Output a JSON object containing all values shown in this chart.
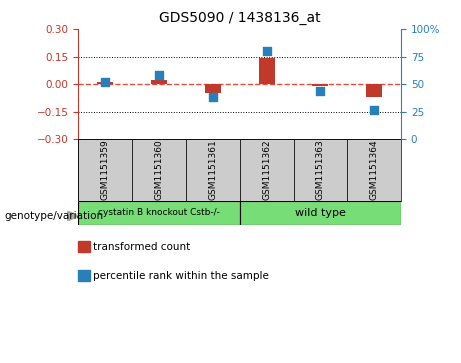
{
  "title": "GDS5090 / 1438136_at",
  "samples": [
    "GSM1151359",
    "GSM1151360",
    "GSM1151361",
    "GSM1151362",
    "GSM1151363",
    "GSM1151364"
  ],
  "bar_values": [
    0.01,
    0.02,
    -0.05,
    0.14,
    -0.01,
    -0.07
  ],
  "percentile_values": [
    52,
    58,
    38,
    80,
    44,
    27
  ],
  "ylim_left": [
    -0.3,
    0.3
  ],
  "ylim_right": [
    0,
    100
  ],
  "yticks_left": [
    -0.3,
    -0.15,
    0.0,
    0.15,
    0.3
  ],
  "yticks_right": [
    0,
    25,
    50,
    75,
    100
  ],
  "bar_color": "#c0392b",
  "dot_color": "#2980b9",
  "hline_color": "#e74c3c",
  "grid_color": "#000000",
  "group1_label": "cystatin B knockout Cstb-/-",
  "group2_label": "wild type",
  "group1_indices": [
    0,
    1,
    2
  ],
  "group2_indices": [
    3,
    4,
    5
  ],
  "group1_color": "#77dd77",
  "group2_color": "#77dd77",
  "genotype_label": "genotype/variation",
  "legend_bar_label": "transformed count",
  "legend_dot_label": "percentile rank within the sample",
  "background_color": "#ffffff",
  "plot_bg_color": "#ffffff",
  "sample_box_color": "#cccccc",
  "left_axis_color": "#c0392b",
  "right_axis_color": "#2980b9"
}
